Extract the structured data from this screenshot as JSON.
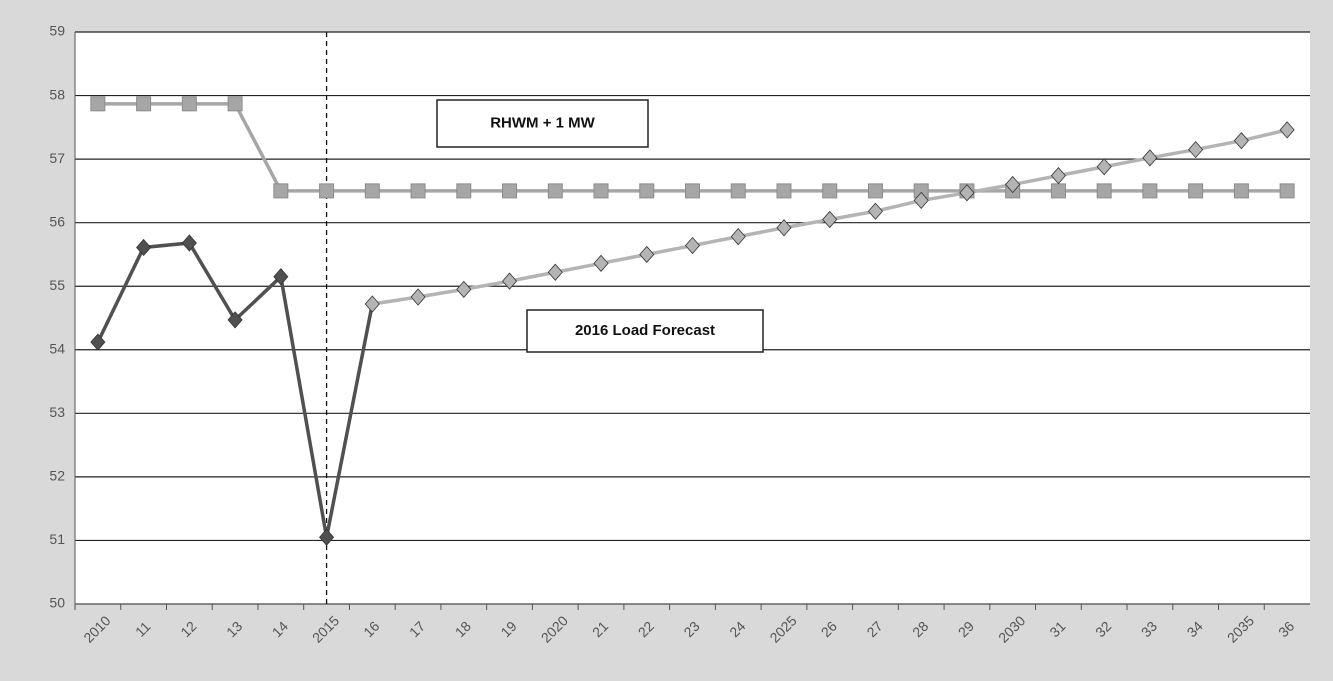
{
  "chart_data": {
    "type": "line",
    "categories": [
      "2010",
      "11",
      "12",
      "13",
      "14",
      "2015",
      "16",
      "17",
      "18",
      "19",
      "2020",
      "21",
      "22",
      "23",
      "24",
      "2025",
      "26",
      "27",
      "28",
      "29",
      "2030",
      "31",
      "32",
      "33",
      "34",
      "2035",
      "36"
    ],
    "series": [
      {
        "color": "#a6a6a6",
        "marker": "square",
        "values": [
          57.87,
          57.87,
          57.87,
          57.87,
          56.5,
          56.5,
          56.5,
          56.5,
          56.5,
          56.5,
          56.5,
          56.5,
          56.5,
          56.5,
          56.5,
          56.5,
          56.5,
          56.5,
          56.5,
          56.5,
          56.5,
          56.5,
          56.5,
          56.5,
          56.5,
          56.5,
          56.5
        ]
      },
      {
        "color": "#505050",
        "marker": "diamond",
        "values": [
          54.12,
          55.61,
          55.68,
          54.47,
          55.15,
          51.05,
          null,
          null,
          null,
          null,
          null,
          null,
          null,
          null,
          null,
          null,
          null,
          null,
          null,
          null,
          null,
          null,
          null,
          null,
          null,
          null,
          null
        ]
      },
      {
        "color": "#b4b4b4",
        "marker": "diamond",
        "values": [
          null,
          null,
          null,
          null,
          null,
          null,
          54.72,
          54.83,
          54.95,
          55.08,
          55.22,
          55.36,
          55.5,
          55.64,
          55.78,
          55.92,
          56.05,
          56.18,
          56.35,
          56.47,
          56.6,
          56.74,
          56.88,
          57.02,
          57.15,
          57.29,
          57.46
        ]
      }
    ],
    "ylim": [
      50,
      59
    ],
    "yticks": [
      50,
      51,
      52,
      53,
      54,
      55,
      56,
      57,
      58,
      59
    ],
    "grid": true,
    "vline_at": "2015",
    "annotations": [
      "RHWM + 1 MW",
      "2016 Load Forecast"
    ]
  }
}
